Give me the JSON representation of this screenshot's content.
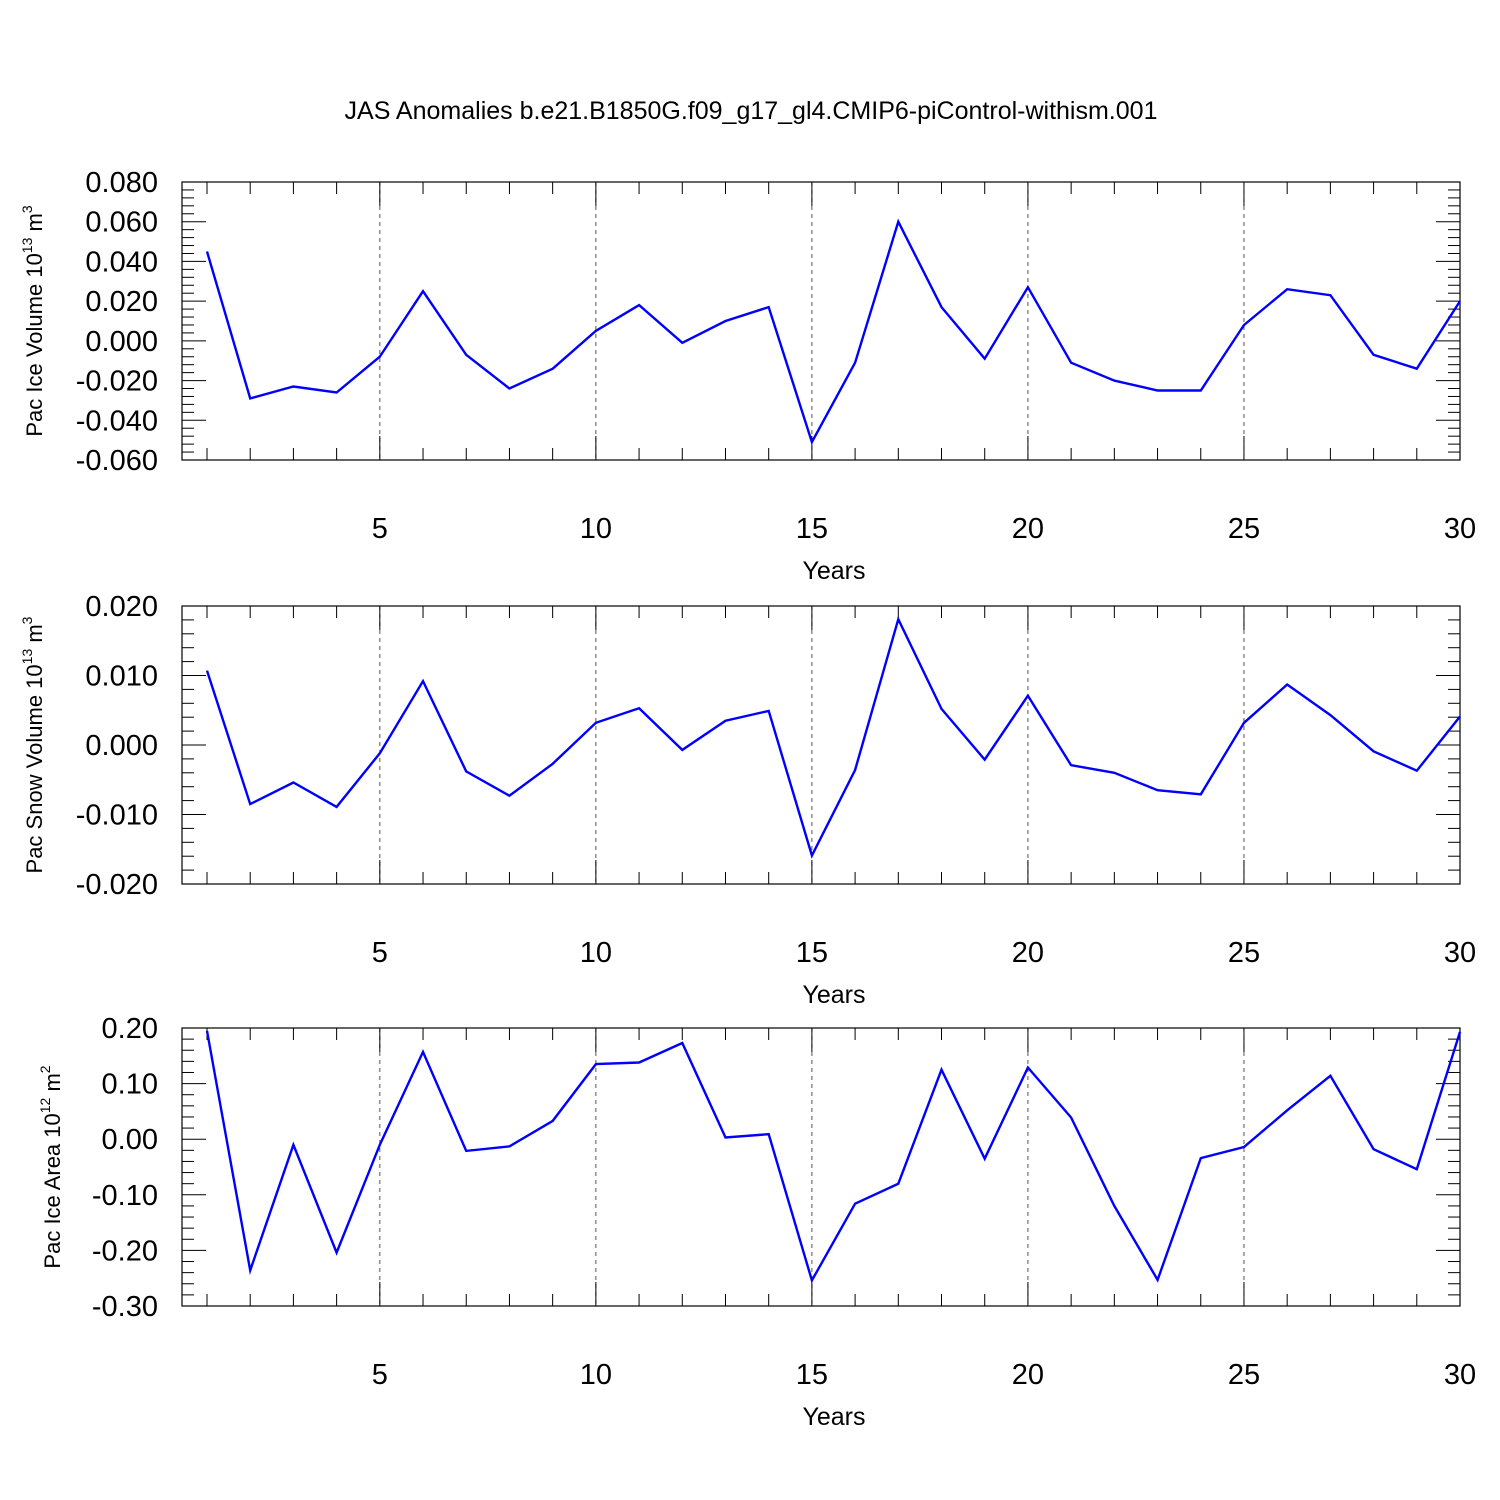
{
  "title": "JAS Anomalies b.e21.B1850G.f09_g17_gl4.CMIP6-piControl-withism.001",
  "chart_data": [
    {
      "type": "line",
      "xlabel": "Years",
      "ylabel_main": "Pac Ice Volume 10",
      "ylabel_exp": "13",
      "ylabel_unit": " m",
      "ylabel_unit_exp": "3",
      "xlim": [
        1,
        30
      ],
      "ylim": [
        -0.06,
        0.08
      ],
      "yticks": [
        -0.06,
        -0.04,
        -0.02,
        0.0,
        0.02,
        0.04,
        0.06,
        0.08
      ],
      "ytick_labels": [
        "-0.060",
        "-0.040",
        "-0.020",
        "0.000",
        "0.020",
        "0.040",
        "0.060",
        "0.080"
      ],
      "xticks": [
        5,
        10,
        15,
        20,
        25,
        30
      ],
      "xtick_labels": [
        "5",
        "10",
        "15",
        "20",
        "25",
        "30"
      ],
      "line_color": "#0000ff",
      "grid": "vertical dashed at major x ticks",
      "x": [
        1,
        2,
        3,
        4,
        5,
        6,
        7,
        8,
        9,
        10,
        11,
        12,
        13,
        14,
        15,
        16,
        17,
        18,
        19,
        20,
        21,
        22,
        23,
        24,
        25,
        26,
        27,
        28,
        29,
        30
      ],
      "y": [
        0.045,
        -0.029,
        -0.023,
        -0.026,
        -0.008,
        0.025,
        -0.007,
        -0.024,
        -0.014,
        0.005,
        0.018,
        -0.001,
        0.01,
        0.017,
        -0.051,
        -0.011,
        0.06,
        0.017,
        -0.009,
        0.027,
        -0.011,
        -0.02,
        -0.025,
        -0.025,
        0.008,
        0.026,
        0.023,
        -0.007,
        -0.014,
        0.02
      ]
    },
    {
      "type": "line",
      "xlabel": "Years",
      "ylabel_main": "Pac Snow Volume 10",
      "ylabel_exp": "13",
      "ylabel_unit": " m",
      "ylabel_unit_exp": "3",
      "xlim": [
        1,
        30
      ],
      "ylim": [
        -0.02,
        0.02
      ],
      "yticks": [
        -0.02,
        -0.01,
        0.0,
        0.01,
        0.02
      ],
      "ytick_labels": [
        "-0.020",
        "-0.010",
        "0.000",
        "0.010",
        "0.020"
      ],
      "xticks": [
        5,
        10,
        15,
        20,
        25,
        30
      ],
      "xtick_labels": [
        "5",
        "10",
        "15",
        "20",
        "25",
        "30"
      ],
      "line_color": "#0000ff",
      "grid": "vertical dashed at major x ticks",
      "x": [
        1,
        2,
        3,
        4,
        5,
        6,
        7,
        8,
        9,
        10,
        11,
        12,
        13,
        14,
        15,
        16,
        17,
        18,
        19,
        20,
        21,
        22,
        23,
        24,
        25,
        26,
        27,
        28,
        29,
        30
      ],
      "y": [
        0.0107,
        -0.0085,
        -0.0054,
        -0.0089,
        -0.0012,
        0.0092,
        -0.0038,
        -0.0073,
        -0.0027,
        0.0032,
        0.0053,
        -0.0007,
        0.0035,
        0.0049,
        -0.0159,
        -0.0036,
        0.0181,
        0.0052,
        -0.0021,
        0.0071,
        -0.0029,
        -0.004,
        -0.0065,
        -0.0071,
        0.0032,
        0.0087,
        0.0043,
        -0.0009,
        -0.0037,
        0.0041
      ]
    },
    {
      "type": "line",
      "xlabel": "Years",
      "ylabel_main": "Pac Ice Area 10",
      "ylabel_exp": "12",
      "ylabel_unit": " m",
      "ylabel_unit_exp": "2",
      "xlim": [
        1,
        30
      ],
      "ylim": [
        -0.3,
        0.2
      ],
      "yticks": [
        -0.3,
        -0.2,
        -0.1,
        0.0,
        0.1,
        0.2
      ],
      "ytick_labels": [
        "-0.30",
        "-0.20",
        "-0.10",
        "0.00",
        "0.10",
        "0.20"
      ],
      "xticks": [
        5,
        10,
        15,
        20,
        25,
        30
      ],
      "xtick_labels": [
        "5",
        "10",
        "15",
        "20",
        "25",
        "30"
      ],
      "line_color": "#0000ff",
      "grid": "vertical dashed at major x ticks",
      "x": [
        1,
        2,
        3,
        4,
        5,
        6,
        7,
        8,
        9,
        10,
        11,
        12,
        13,
        14,
        15,
        16,
        17,
        18,
        19,
        20,
        21,
        22,
        23,
        24,
        25,
        26,
        27,
        28,
        29,
        30
      ],
      "y": [
        0.195,
        -0.236,
        -0.01,
        -0.204,
        -0.01,
        0.157,
        -0.021,
        -0.013,
        0.033,
        0.135,
        0.138,
        0.173,
        0.003,
        0.009,
        -0.254,
        -0.116,
        -0.08,
        0.125,
        -0.035,
        0.129,
        0.039,
        -0.12,
        -0.253,
        -0.034,
        -0.014,
        0.052,
        0.114,
        -0.018,
        -0.054,
        0.193
      ]
    }
  ]
}
